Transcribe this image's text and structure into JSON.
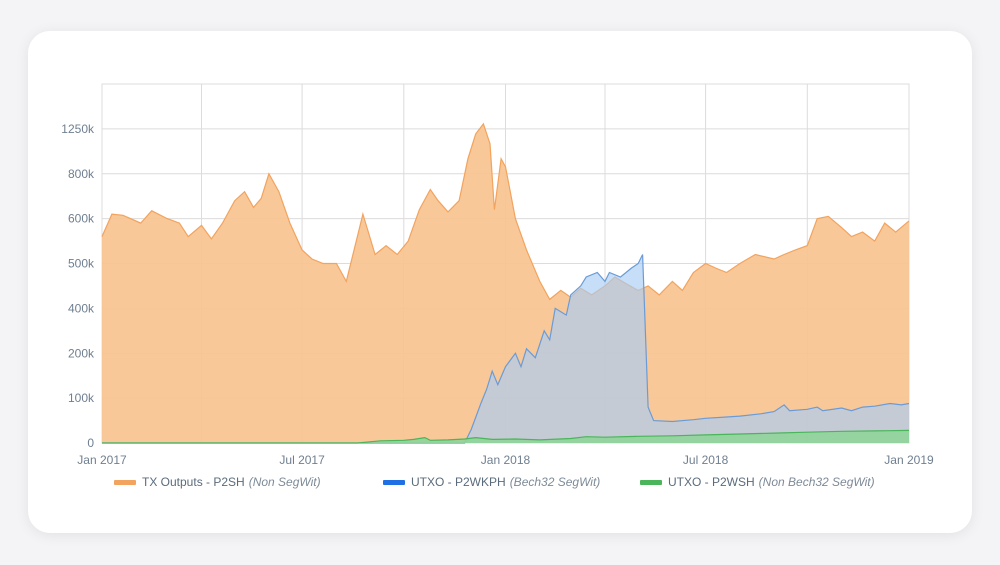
{
  "colors": {
    "p2sh_fill": "#f7c38f",
    "p2sh_line": "#f2a35e",
    "p2wkph_fill": "#a9cdf5",
    "p2wkph_line": "#6b9bd6",
    "p2wsh_fill": "#8fd49a",
    "p2wsh_line": "#4ab55a",
    "grid": "#dcdcdc",
    "tick": "#6f7f90"
  },
  "chart_data": {
    "type": "area",
    "x_axis": {
      "type": "date",
      "range": [
        "2017-01-01",
        "2019-01-01"
      ],
      "tick_labels": [
        "Jan 2017",
        "Jul 2017",
        "Jan 2018",
        "Jul 2018",
        "Jan 2019"
      ],
      "tick_dates": [
        "2017-01-01",
        "2017-07-01",
        "2018-01-01",
        "2018-07-01",
        "2019-01-01"
      ],
      "minor_grid_dates": [
        "2017-04-01",
        "2017-10-01",
        "2018-04-01",
        "2018-10-01"
      ]
    },
    "y_axis": {
      "tick_labels": [
        "0",
        "100k",
        "200k",
        "400k",
        "500k",
        "600k",
        "800k",
        "1250k"
      ],
      "tick_values": [
        0,
        100000,
        200000,
        400000,
        500000,
        600000,
        800000,
        1250000
      ],
      "grid_levels": 8,
      "irregular_scale": true
    },
    "grid": true,
    "legend_position": "bottom",
    "series": [
      {
        "key": "p2sh",
        "name": "TX Outputs - P2SH",
        "note": "(Non SegWit)",
        "color_key": "p2sh",
        "points": [
          [
            "2017-01-01",
            560000
          ],
          [
            "2017-01-10",
            620000
          ],
          [
            "2017-01-20",
            615000
          ],
          [
            "2017-02-05",
            590000
          ],
          [
            "2017-02-15",
            635000
          ],
          [
            "2017-03-01",
            600000
          ],
          [
            "2017-03-12",
            590000
          ],
          [
            "2017-03-20",
            560000
          ],
          [
            "2017-04-01",
            585000
          ],
          [
            "2017-04-10",
            555000
          ],
          [
            "2017-04-20",
            590000
          ],
          [
            "2017-05-01",
            680000
          ],
          [
            "2017-05-10",
            720000
          ],
          [
            "2017-05-18",
            650000
          ],
          [
            "2017-05-25",
            690000
          ],
          [
            "2017-06-01",
            800000
          ],
          [
            "2017-06-10",
            720000
          ],
          [
            "2017-06-20",
            590000
          ],
          [
            "2017-07-01",
            530000
          ],
          [
            "2017-07-10",
            510000
          ],
          [
            "2017-07-20",
            500000
          ],
          [
            "2017-08-01",
            500000
          ],
          [
            "2017-08-10",
            460000
          ],
          [
            "2017-08-25",
            620000
          ],
          [
            "2017-09-05",
            520000
          ],
          [
            "2017-09-15",
            540000
          ],
          [
            "2017-09-25",
            520000
          ],
          [
            "2017-10-05",
            550000
          ],
          [
            "2017-10-15",
            640000
          ],
          [
            "2017-10-25",
            730000
          ],
          [
            "2017-11-01",
            680000
          ],
          [
            "2017-11-10",
            630000
          ],
          [
            "2017-11-20",
            680000
          ],
          [
            "2017-11-28",
            950000
          ],
          [
            "2017-12-05",
            1200000
          ],
          [
            "2017-12-12",
            1300000
          ],
          [
            "2017-12-18",
            1100000
          ],
          [
            "2017-12-22",
            640000
          ],
          [
            "2017-12-28",
            950000
          ],
          [
            "2018-01-01",
            870000
          ],
          [
            "2018-01-10",
            600000
          ],
          [
            "2018-01-20",
            530000
          ],
          [
            "2018-02-01",
            460000
          ],
          [
            "2018-02-10",
            420000
          ],
          [
            "2018-02-20",
            440000
          ],
          [
            "2018-03-01",
            425000
          ],
          [
            "2018-03-10",
            445000
          ],
          [
            "2018-03-20",
            430000
          ],
          [
            "2018-04-01",
            450000
          ],
          [
            "2018-04-10",
            470000
          ],
          [
            "2018-04-20",
            455000
          ],
          [
            "2018-05-01",
            440000
          ],
          [
            "2018-05-10",
            450000
          ],
          [
            "2018-05-20",
            430000
          ],
          [
            "2018-06-01",
            460000
          ],
          [
            "2018-06-10",
            440000
          ],
          [
            "2018-06-20",
            480000
          ],
          [
            "2018-07-01",
            500000
          ],
          [
            "2018-07-10",
            490000
          ],
          [
            "2018-07-20",
            480000
          ],
          [
            "2018-08-01",
            500000
          ],
          [
            "2018-08-15",
            520000
          ],
          [
            "2018-09-01",
            510000
          ],
          [
            "2018-09-10",
            520000
          ],
          [
            "2018-09-20",
            530000
          ],
          [
            "2018-10-01",
            540000
          ],
          [
            "2018-10-10",
            600000
          ],
          [
            "2018-10-20",
            610000
          ],
          [
            "2018-11-01",
            580000
          ],
          [
            "2018-11-10",
            560000
          ],
          [
            "2018-11-20",
            570000
          ],
          [
            "2018-12-01",
            550000
          ],
          [
            "2018-12-10",
            590000
          ],
          [
            "2018-12-20",
            570000
          ],
          [
            "2019-01-01",
            595000
          ]
        ]
      },
      {
        "key": "p2wkph",
        "name": "UTXO - P2WKPH",
        "note": "(Bech32  SegWit)",
        "color_key": "p2wkph",
        "points": [
          [
            "2017-01-01",
            0
          ],
          [
            "2017-11-25",
            0
          ],
          [
            "2017-12-01",
            30000
          ],
          [
            "2017-12-10",
            90000
          ],
          [
            "2017-12-15",
            120000
          ],
          [
            "2017-12-20",
            160000
          ],
          [
            "2017-12-25",
            130000
          ],
          [
            "2018-01-01",
            170000
          ],
          [
            "2018-01-10",
            200000
          ],
          [
            "2018-01-15",
            170000
          ],
          [
            "2018-01-20",
            220000
          ],
          [
            "2018-01-28",
            190000
          ],
          [
            "2018-02-05",
            300000
          ],
          [
            "2018-02-10",
            260000
          ],
          [
            "2018-02-15",
            400000
          ],
          [
            "2018-02-25",
            370000
          ],
          [
            "2018-03-01",
            430000
          ],
          [
            "2018-03-10",
            450000
          ],
          [
            "2018-03-15",
            470000
          ],
          [
            "2018-03-25",
            480000
          ],
          [
            "2018-04-01",
            460000
          ],
          [
            "2018-04-05",
            480000
          ],
          [
            "2018-04-15",
            470000
          ],
          [
            "2018-04-25",
            490000
          ],
          [
            "2018-05-01",
            500000
          ],
          [
            "2018-05-05",
            520000
          ],
          [
            "2018-05-10",
            80000
          ],
          [
            "2018-05-15",
            50000
          ],
          [
            "2018-06-01",
            48000
          ],
          [
            "2018-06-20",
            52000
          ],
          [
            "2018-07-01",
            55000
          ],
          [
            "2018-07-20",
            58000
          ],
          [
            "2018-08-01",
            60000
          ],
          [
            "2018-08-20",
            65000
          ],
          [
            "2018-09-01",
            70000
          ],
          [
            "2018-09-10",
            85000
          ],
          [
            "2018-09-15",
            72000
          ],
          [
            "2018-10-01",
            75000
          ],
          [
            "2018-10-10",
            80000
          ],
          [
            "2018-10-15",
            72000
          ],
          [
            "2018-11-01",
            78000
          ],
          [
            "2018-11-10",
            72000
          ],
          [
            "2018-11-20",
            80000
          ],
          [
            "2018-12-01",
            82000
          ],
          [
            "2018-12-15",
            88000
          ],
          [
            "2018-12-25",
            85000
          ],
          [
            "2019-01-01",
            88000
          ]
        ]
      },
      {
        "key": "p2wsh",
        "name": "UTXO - P2WSH",
        "note": "(Non Bech32 SegWit)",
        "color_key": "p2wsh",
        "points": [
          [
            "2017-01-01",
            0
          ],
          [
            "2017-08-20",
            0
          ],
          [
            "2017-09-10",
            5000
          ],
          [
            "2017-10-01",
            6000
          ],
          [
            "2017-10-10",
            8000
          ],
          [
            "2017-10-20",
            12000
          ],
          [
            "2017-10-25",
            6000
          ],
          [
            "2017-11-10",
            7000
          ],
          [
            "2017-11-25",
            9000
          ],
          [
            "2017-12-05",
            12000
          ],
          [
            "2017-12-20",
            8000
          ],
          [
            "2018-01-10",
            9000
          ],
          [
            "2018-02-01",
            7000
          ],
          [
            "2018-03-01",
            10000
          ],
          [
            "2018-03-15",
            14000
          ],
          [
            "2018-04-01",
            13000
          ],
          [
            "2018-05-01",
            15000
          ],
          [
            "2018-06-01",
            16000
          ],
          [
            "2018-07-01",
            18000
          ],
          [
            "2018-08-01",
            20000
          ],
          [
            "2018-09-01",
            22000
          ],
          [
            "2018-10-01",
            24000
          ],
          [
            "2018-11-01",
            26000
          ],
          [
            "2018-12-01",
            27000
          ],
          [
            "2019-01-01",
            28000
          ]
        ]
      }
    ]
  }
}
